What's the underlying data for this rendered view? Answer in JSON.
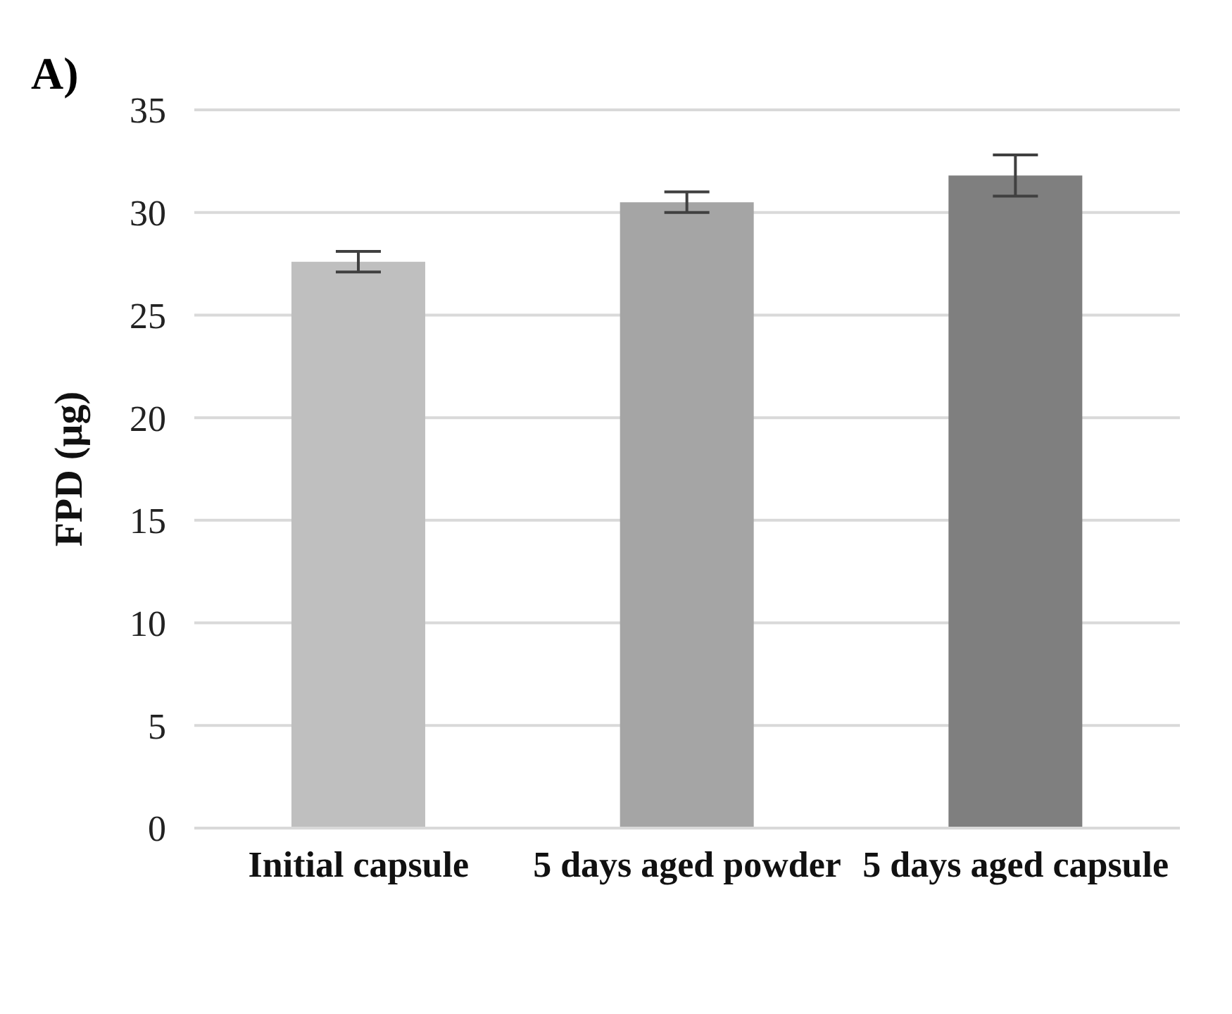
{
  "chart_data": {
    "type": "bar",
    "title": "A)",
    "ylabel": "FPD (µg)",
    "categories": [
      "Initial capsule",
      "5 days aged powder",
      "5 days aged capsule"
    ],
    "values": [
      27.6,
      30.5,
      31.8
    ],
    "errors": [
      0.5,
      0.5,
      1.0
    ],
    "colors": [
      "#bfbfbf",
      "#a5a5a5",
      "#7f7f7f"
    ],
    "ylim": [
      0,
      35
    ],
    "yticks": [
      0,
      5,
      10,
      15,
      20,
      25,
      30,
      35
    ],
    "grid": "y"
  }
}
